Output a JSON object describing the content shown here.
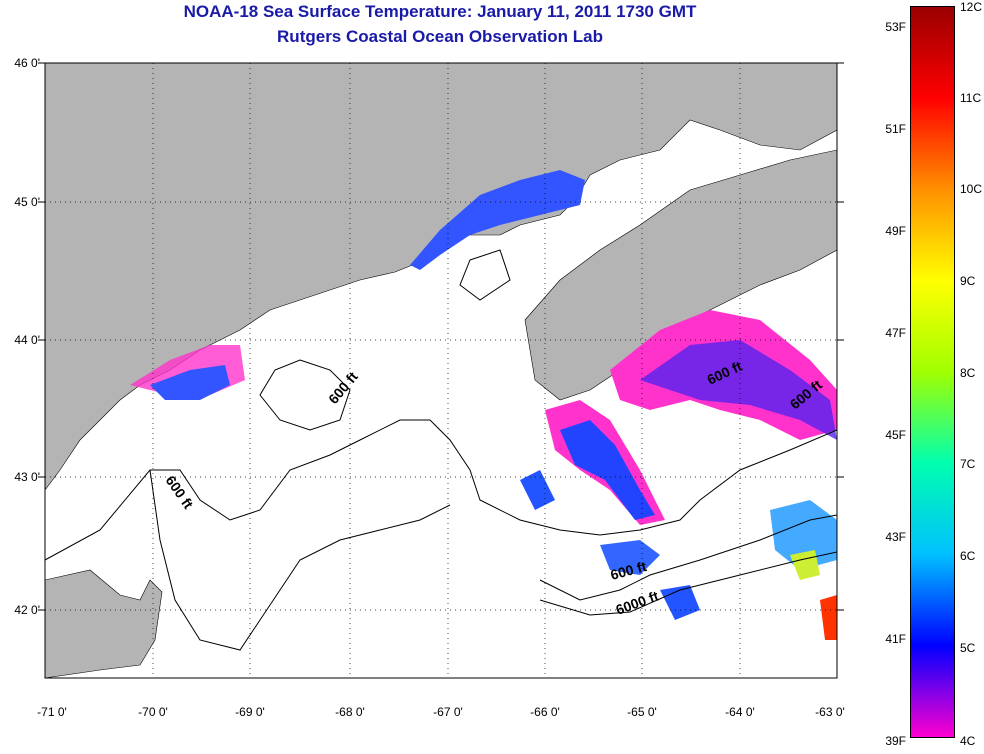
{
  "title": "NOAA-18 Sea Surface Temperature:  January 11, 2011 1730 GMT",
  "subtitle": "Rutgers Coastal Ocean Observation Lab",
  "lat_labels": [
    "46 0'",
    "45 0'",
    "44 0'",
    "43 0'",
    "42 0'"
  ],
  "lon_labels": [
    "-71 0'",
    "-70 0'",
    "-69 0'",
    "-68 0'",
    "-67 0'",
    "-66 0'",
    "-65 0'",
    "-64 0'",
    "-63 0'"
  ],
  "contour_labels": [
    "600 ft",
    "600 ft",
    "600 ft",
    "600 ft",
    "600 ft",
    "6000 ft"
  ],
  "colorbar": {
    "fahrenheit": [
      "53F",
      "51F",
      "49F",
      "47F",
      "45F",
      "43F",
      "41F",
      "39F"
    ],
    "celsius": [
      "12C",
      "11C",
      "10C",
      "9C",
      "8C",
      "7C",
      "6C",
      "5C",
      "4C"
    ],
    "colors": [
      "#ff00d0",
      "#0000ff",
      "#00c0ff",
      "#00ffb0",
      "#a0ff00",
      "#ffff00",
      "#ff9000",
      "#ff0000",
      "#9a0000"
    ]
  },
  "colors": {
    "land": "#b4b4b4",
    "title": "#1a1aa8",
    "warm_pink": "#ff33cc",
    "cool_blue": "#3355ff"
  }
}
